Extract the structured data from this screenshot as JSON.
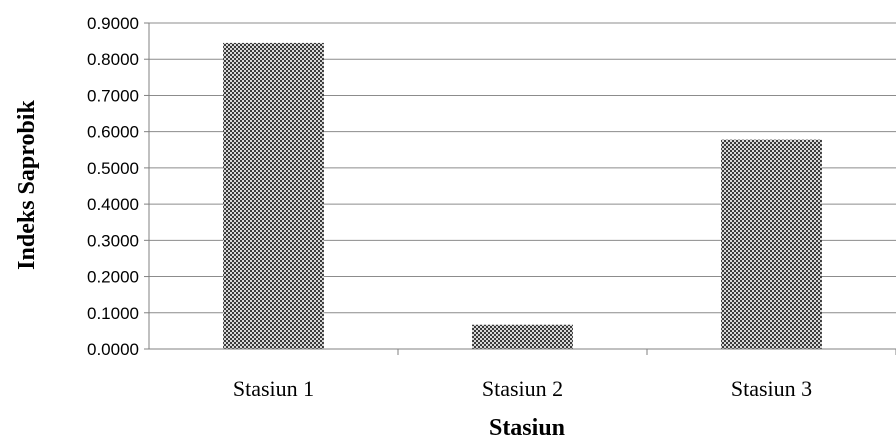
{
  "chart_data": {
    "type": "bar",
    "title": "",
    "xlabel": "Stasiun",
    "ylabel": "Indeks Saprobik",
    "categories": [
      "Stasiun 1",
      "Stasiun 2",
      "Stasiun 3"
    ],
    "values": [
      0.845,
      0.067,
      0.578
    ],
    "ylim": [
      0,
      0.9
    ],
    "yticks": [
      "0.0000",
      "0.1000",
      "0.2000",
      "0.3000",
      "0.4000",
      "0.5000",
      "0.6000",
      "0.7000",
      "0.8000",
      "0.9000"
    ],
    "grid": true,
    "legend": "none",
    "bar_pattern": "checkered dark gray"
  },
  "colors": {
    "bar_dark": "#3a3a3a",
    "bar_light": "#d8d8d8",
    "grid": "#8c8c8c",
    "axis": "#808080"
  }
}
